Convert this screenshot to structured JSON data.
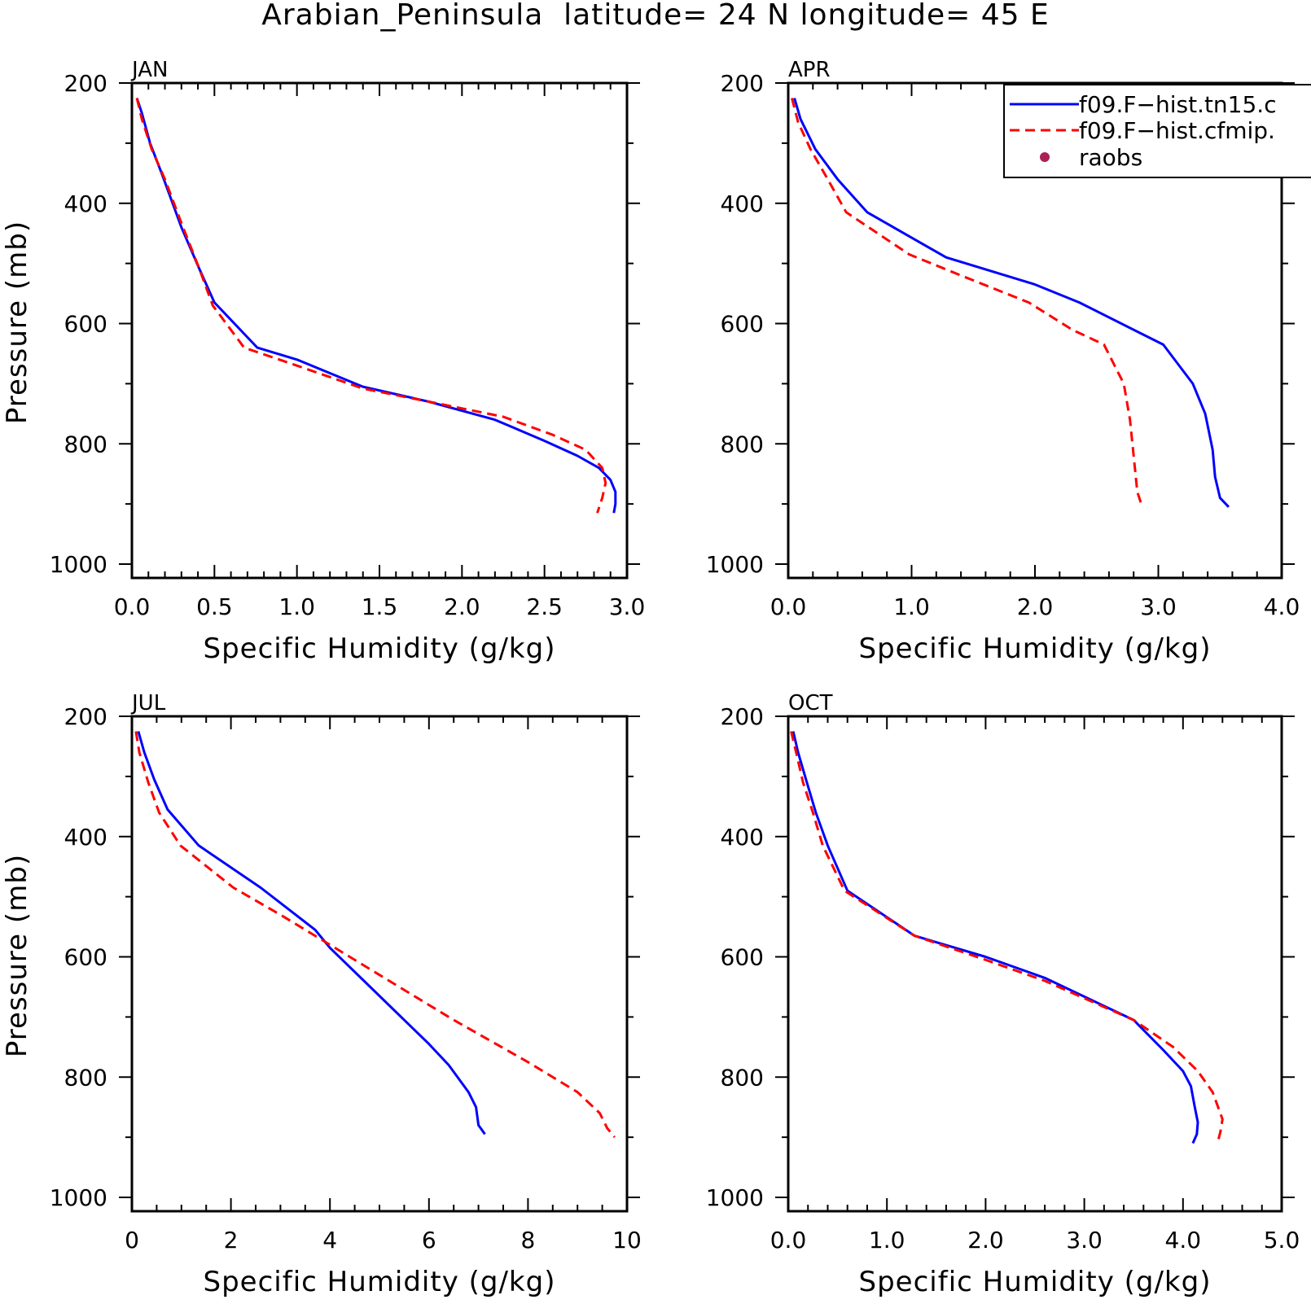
{
  "title": "Arabian_Peninsula  latitude= 24 N longitude= 45 E",
  "legend": {
    "placement": "top-right of APR panel (clipped at figure edge)",
    "entries": [
      {
        "label": "f09.F−hist.tn15.c",
        "color": "#0000ff",
        "style": "solid"
      },
      {
        "label": "f09.F−hist.cfmip.",
        "color": "#ff0000",
        "style": "dashed"
      },
      {
        "label": "raobs",
        "color": "#aa2255",
        "style": "dot"
      }
    ]
  },
  "chart_data": [
    {
      "type": "line",
      "panel": "JAN",
      "xlabel": "Specific Humidity (g/kg)",
      "ylabel": "Pressure (mb)",
      "xlim": [
        0,
        3.0
      ],
      "ylim": [
        1000,
        200
      ],
      "y_inverted": true,
      "xticks": [
        "0.0",
        "0.5",
        "1.0",
        "1.5",
        "2.0",
        "2.5",
        "3.0"
      ],
      "xtick_values": [
        0,
        0.5,
        1.0,
        1.5,
        2.0,
        2.5,
        3.0
      ],
      "yticks": [
        "200",
        "400",
        "600",
        "800",
        "1000"
      ],
      "ytick_values": [
        200,
        400,
        600,
        800,
        1000
      ],
      "series": [
        {
          "color": "#0000ff",
          "dash": false,
          "points": [
            [
              0.03,
              225
            ],
            [
              0.06,
              250
            ],
            [
              0.11,
              300
            ],
            [
              0.18,
              350
            ],
            [
              0.3,
              440
            ],
            [
              0.41,
              510
            ],
            [
              0.5,
              565
            ],
            [
              0.76,
              640
            ],
            [
              1.0,
              660
            ],
            [
              1.4,
              705
            ],
            [
              1.8,
              730
            ],
            [
              2.2,
              760
            ],
            [
              2.5,
              795
            ],
            [
              2.7,
              820
            ],
            [
              2.83,
              840
            ],
            [
              2.9,
              860
            ],
            [
              2.93,
              880
            ],
            [
              2.93,
              900
            ],
            [
              2.92,
              915
            ]
          ]
        },
        {
          "color": "#ff0000",
          "dash": true,
          "points": [
            [
              0.03,
              225
            ],
            [
              0.06,
              260
            ],
            [
              0.12,
              310
            ],
            [
              0.2,
              360
            ],
            [
              0.31,
              440
            ],
            [
              0.41,
              510
            ],
            [
              0.49,
              570
            ],
            [
              0.68,
              640
            ],
            [
              1.0,
              670
            ],
            [
              1.4,
              708
            ],
            [
              1.8,
              730
            ],
            [
              2.25,
              755
            ],
            [
              2.55,
              785
            ],
            [
              2.75,
              810
            ],
            [
              2.85,
              840
            ],
            [
              2.87,
              865
            ],
            [
              2.85,
              890
            ],
            [
              2.82,
              915
            ]
          ]
        }
      ]
    },
    {
      "type": "line",
      "panel": "APR",
      "xlabel": "Specific Humidity (g/kg)",
      "ylabel": "",
      "xlim": [
        0,
        4.0
      ],
      "ylim": [
        1000,
        200
      ],
      "y_inverted": true,
      "xticks": [
        "0.0",
        "1.0",
        "2.0",
        "3.0",
        "4.0"
      ],
      "xtick_values": [
        0,
        1.0,
        2.0,
        3.0,
        4.0
      ],
      "yticks": [
        "200",
        "400",
        "600",
        "800",
        "1000"
      ],
      "ytick_values": [
        200,
        400,
        600,
        800,
        1000
      ],
      "series": [
        {
          "color": "#0000ff",
          "dash": false,
          "points": [
            [
              0.05,
              225
            ],
            [
              0.1,
              260
            ],
            [
              0.22,
              310
            ],
            [
              0.4,
              360
            ],
            [
              0.64,
              415
            ],
            [
              1.28,
              490
            ],
            [
              2.0,
              535
            ],
            [
              2.36,
              565
            ],
            [
              3.04,
              635
            ],
            [
              3.28,
              700
            ],
            [
              3.38,
              750
            ],
            [
              3.44,
              810
            ],
            [
              3.46,
              855
            ],
            [
              3.5,
              890
            ],
            [
              3.57,
              905
            ]
          ]
        },
        {
          "color": "#ff0000",
          "dash": true,
          "points": [
            [
              0.03,
              225
            ],
            [
              0.08,
              265
            ],
            [
              0.18,
              310
            ],
            [
              0.32,
              360
            ],
            [
              0.47,
              415
            ],
            [
              0.98,
              485
            ],
            [
              1.4,
              520
            ],
            [
              1.95,
              565
            ],
            [
              2.3,
              610
            ],
            [
              2.56,
              635
            ],
            [
              2.72,
              700
            ],
            [
              2.77,
              760
            ],
            [
              2.8,
              820
            ],
            [
              2.83,
              880
            ],
            [
              2.87,
              905
            ]
          ]
        }
      ]
    },
    {
      "type": "line",
      "panel": "JUL",
      "xlabel": "Specific Humidity (g/kg)",
      "ylabel": "Pressure (mb)",
      "xlim": [
        0,
        10
      ],
      "ylim": [
        1000,
        200
      ],
      "y_inverted": true,
      "xticks": [
        "0",
        "2",
        "4",
        "6",
        "8",
        "10"
      ],
      "xtick_values": [
        0,
        2,
        4,
        6,
        8,
        10
      ],
      "yticks": [
        "200",
        "400",
        "600",
        "800",
        "1000"
      ],
      "ytick_values": [
        200,
        400,
        600,
        800,
        1000
      ],
      "series": [
        {
          "color": "#0000ff",
          "dash": false,
          "points": [
            [
              0.13,
              225
            ],
            [
              0.25,
              260
            ],
            [
              0.45,
              305
            ],
            [
              0.72,
              355
            ],
            [
              1.35,
              415
            ],
            [
              2.6,
              485
            ],
            [
              3.7,
              555
            ],
            [
              4.0,
              585
            ],
            [
              5.0,
              665
            ],
            [
              6.0,
              745
            ],
            [
              6.4,
              780
            ],
            [
              6.8,
              825
            ],
            [
              6.95,
              850
            ],
            [
              7.0,
              880
            ],
            [
              7.13,
              895
            ]
          ]
        },
        {
          "color": "#ff0000",
          "dash": true,
          "points": [
            [
              0.08,
              225
            ],
            [
              0.15,
              260
            ],
            [
              0.33,
              310
            ],
            [
              0.55,
              360
            ],
            [
              0.98,
              415
            ],
            [
              2.05,
              485
            ],
            [
              3.0,
              530
            ],
            [
              3.9,
              575
            ],
            [
              5.0,
              630
            ],
            [
              6.5,
              705
            ],
            [
              8.0,
              775
            ],
            [
              9.0,
              825
            ],
            [
              9.45,
              860
            ],
            [
              9.6,
              885
            ],
            [
              9.75,
              900
            ]
          ]
        }
      ]
    },
    {
      "type": "line",
      "panel": "OCT",
      "xlabel": "Specific Humidity (g/kg)",
      "ylabel": "",
      "xlim": [
        0,
        5.0
      ],
      "ylim": [
        1000,
        200
      ],
      "y_inverted": true,
      "xticks": [
        "0.0",
        "1.0",
        "2.0",
        "3.0",
        "4.0",
        "5.0"
      ],
      "xtick_values": [
        0,
        1.0,
        2.0,
        3.0,
        4.0,
        5.0
      ],
      "yticks": [
        "200",
        "400",
        "600",
        "800",
        "1000"
      ],
      "ytick_values": [
        200,
        400,
        600,
        800,
        1000
      ],
      "series": [
        {
          "color": "#0000ff",
          "dash": false,
          "points": [
            [
              0.05,
              225
            ],
            [
              0.1,
              260
            ],
            [
              0.18,
              305
            ],
            [
              0.28,
              360
            ],
            [
              0.4,
              415
            ],
            [
              0.6,
              490
            ],
            [
              1.28,
              565
            ],
            [
              2.0,
              600
            ],
            [
              2.6,
              635
            ],
            [
              3.5,
              705
            ],
            [
              3.8,
              755
            ],
            [
              4.0,
              790
            ],
            [
              4.08,
              815
            ],
            [
              4.12,
              850
            ],
            [
              4.15,
              875
            ],
            [
              4.14,
              895
            ],
            [
              4.1,
              910
            ]
          ]
        },
        {
          "color": "#ff0000",
          "dash": true,
          "points": [
            [
              0.03,
              225
            ],
            [
              0.08,
              260
            ],
            [
              0.15,
              310
            ],
            [
              0.25,
              360
            ],
            [
              0.35,
              415
            ],
            [
              0.57,
              490
            ],
            [
              1.28,
              565
            ],
            [
              2.0,
              605
            ],
            [
              2.6,
              640
            ],
            [
              3.5,
              705
            ],
            [
              3.9,
              750
            ],
            [
              4.15,
              790
            ],
            [
              4.3,
              825
            ],
            [
              4.4,
              870
            ],
            [
              4.38,
              890
            ],
            [
              4.35,
              910
            ]
          ]
        }
      ]
    }
  ]
}
